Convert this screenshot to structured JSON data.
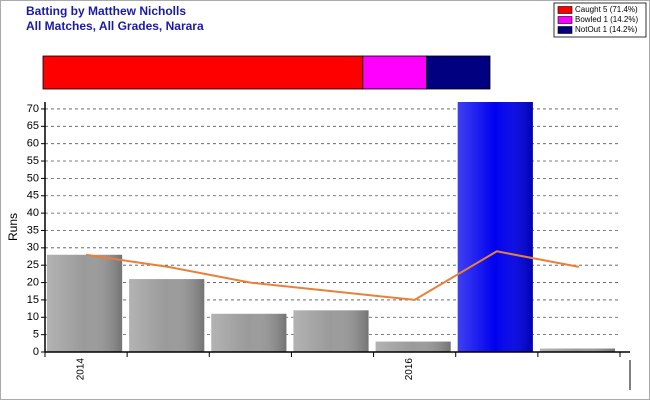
{
  "chart_data": [
    {
      "type": "stacked-bar",
      "title": "Batting by Matthew Nicholls",
      "subtitle": "All Matches, All Grades, Narara",
      "series": [
        {
          "name": "Caught 5 (71.4%)",
          "color": "#ff0000",
          "values": [
            71.4
          ]
        },
        {
          "name": "Bowled 1 (14.2%)",
          "color": "#ff00ff",
          "values": [
            14.2
          ]
        },
        {
          "name": "NotOut 1 (14.2%)",
          "color": "#000080",
          "values": [
            14.2
          ]
        }
      ]
    },
    {
      "type": "bar-line",
      "ylabel": "Runs",
      "categories": [
        "2014",
        null,
        null,
        null,
        "2016",
        null,
        null
      ],
      "ylim": [
        0,
        72
      ],
      "yticks": [
        0,
        5,
        10,
        15,
        20,
        25,
        30,
        35,
        40,
        45,
        50,
        55,
        60,
        65,
        70
      ],
      "grid": true,
      "series": [
        {
          "type": "bar",
          "colors": [
            "#9a9a9a",
            "#9a9a9a",
            "#9a9a9a",
            "#9a9a9a",
            "#9a9a9a",
            "#0000ee",
            "#9a9a9a"
          ],
          "values": [
            28,
            21,
            11,
            12,
            3,
            72,
            1
          ]
        },
        {
          "type": "line",
          "color": "#e8803a",
          "values": [
            28,
            24.5,
            20,
            17.5,
            15,
            29,
            24.5
          ]
        }
      ]
    }
  ]
}
